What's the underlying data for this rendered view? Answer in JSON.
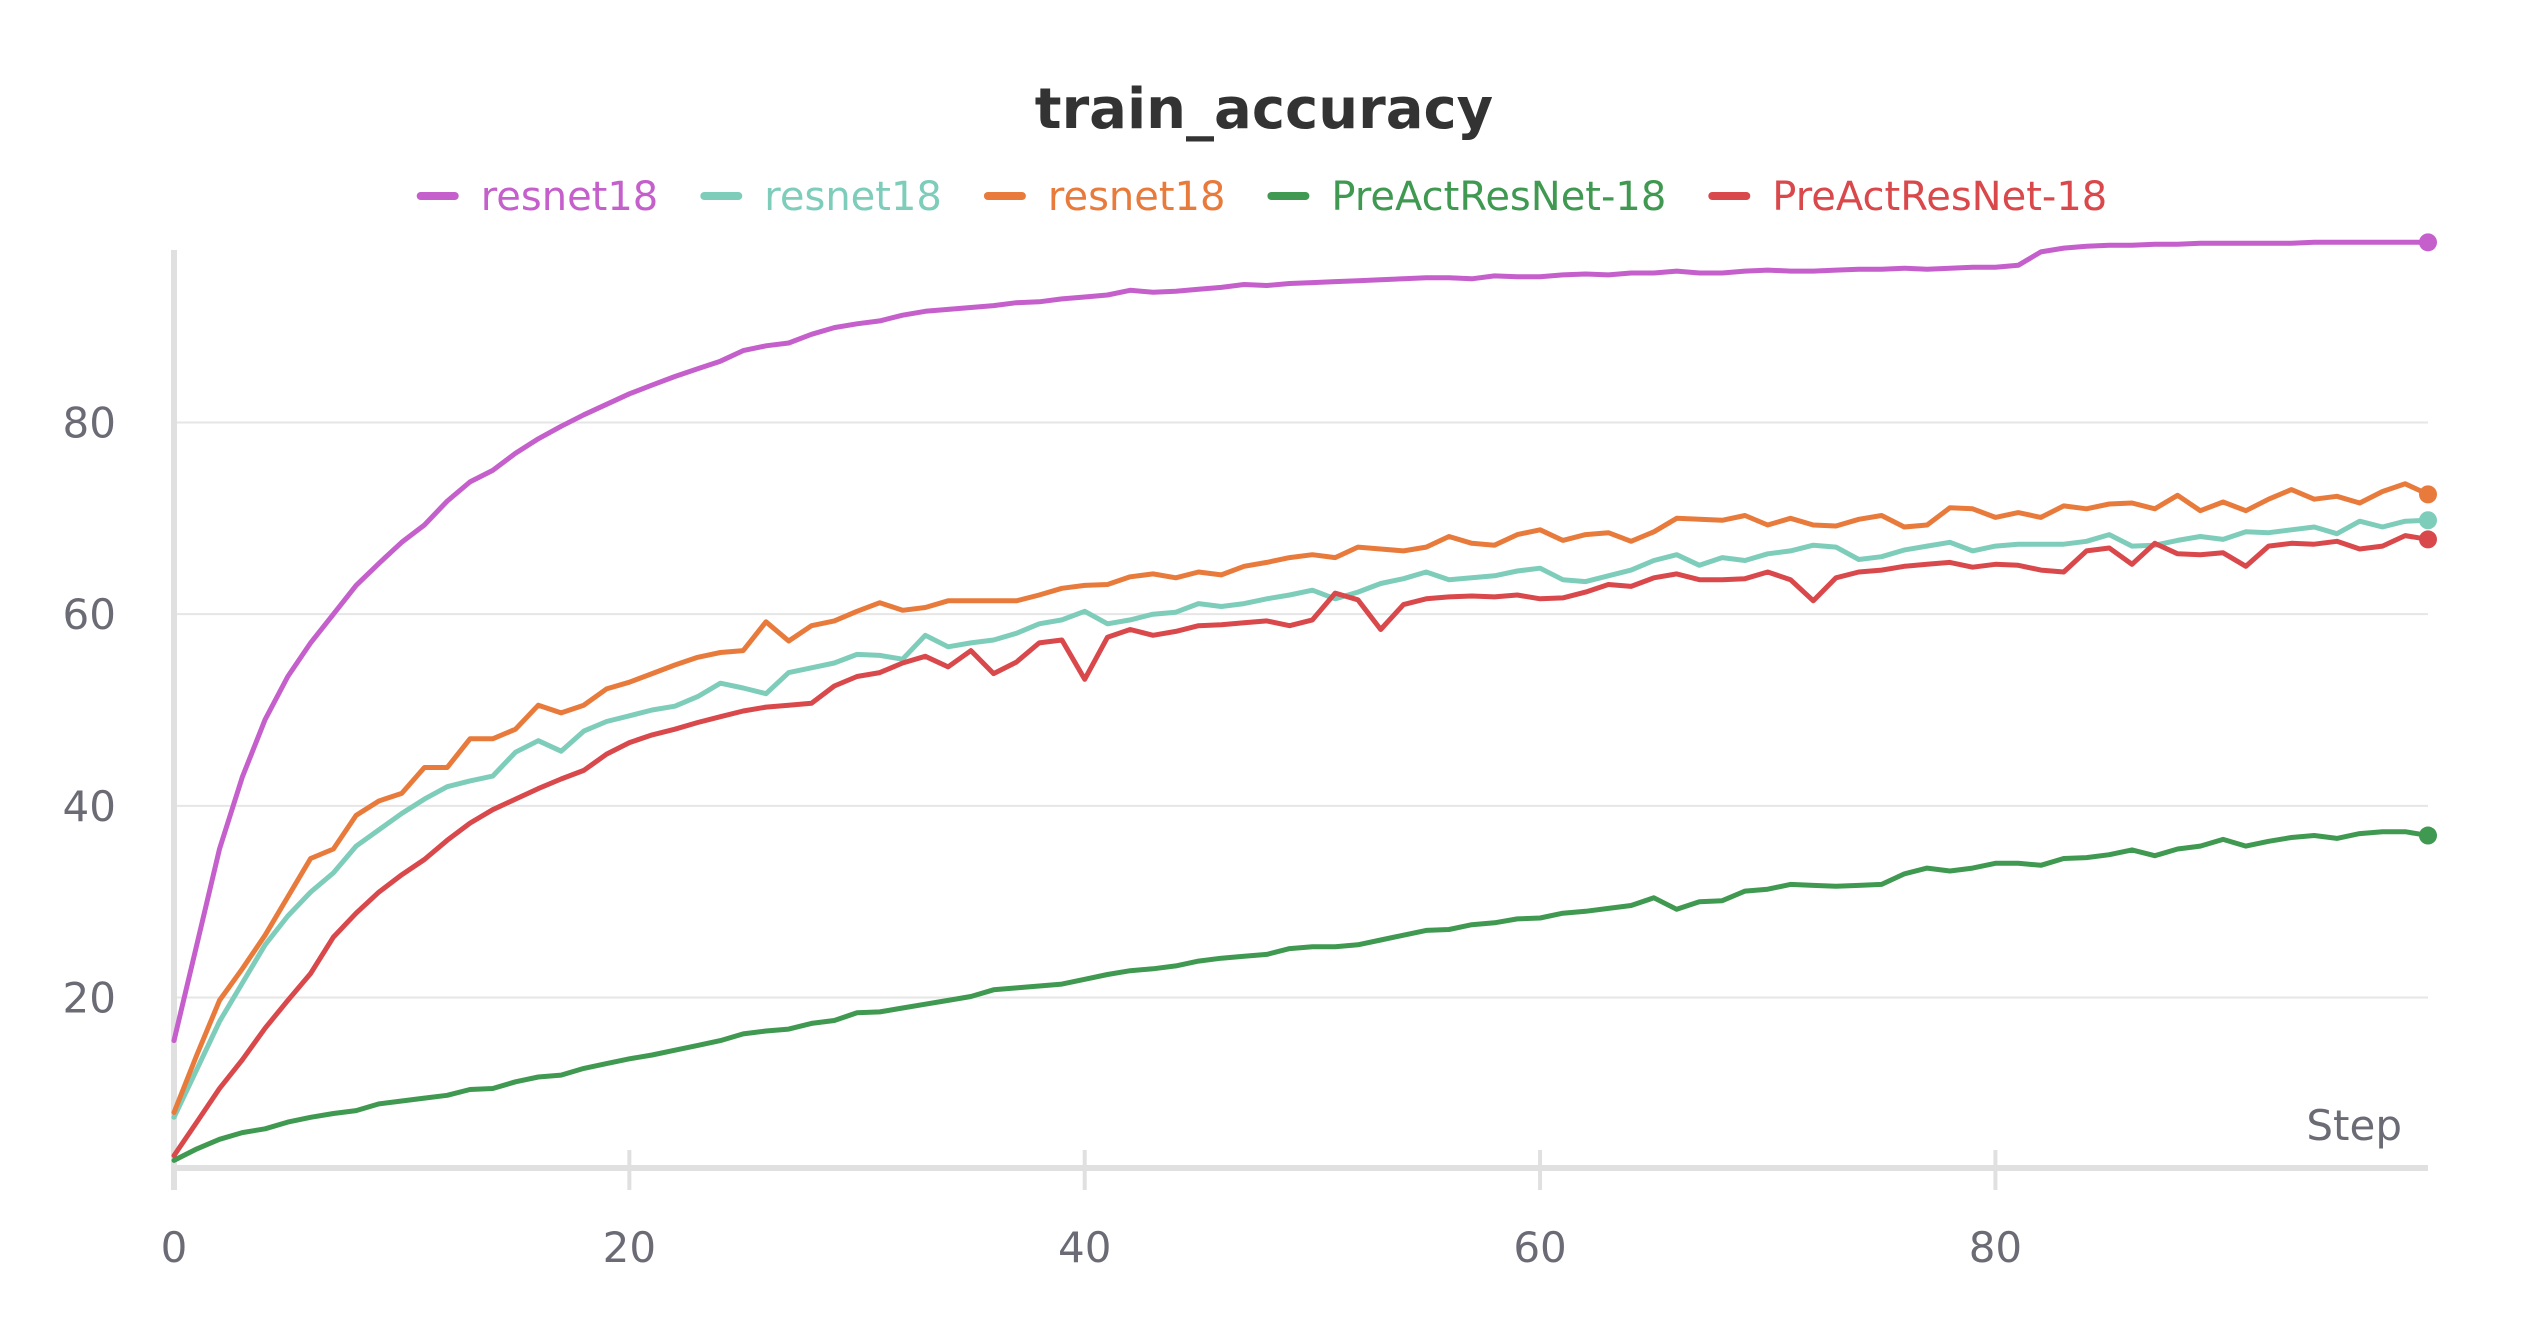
{
  "chart_data": {
    "type": "line",
    "title": "train_accuracy",
    "xlabel": "Step",
    "ylabel": "",
    "xlim": [
      0,
      99
    ],
    "ylim": [
      2,
      98
    ],
    "x_ticks": [
      0,
      20,
      40,
      60,
      80
    ],
    "y_ticks": [
      20,
      40,
      60,
      80
    ],
    "grid": true,
    "legend_position": "top-center",
    "series": [
      {
        "name": "resnet18",
        "color": "#c45fcb",
        "values": [
          15.5,
          25.5,
          35.5,
          43.0,
          49.0,
          53.5,
          57.0,
          60.0,
          63.0,
          65.3,
          67.5,
          69.3,
          71.8,
          73.8,
          75.0,
          76.8,
          78.3,
          79.6,
          80.8,
          81.9,
          83.0,
          83.9,
          84.8,
          85.6,
          86.4,
          87.5,
          88.0,
          88.3,
          89.2,
          89.9,
          90.3,
          90.6,
          91.2,
          91.6,
          91.8,
          92.0,
          92.2,
          92.5,
          92.6,
          92.9,
          93.1,
          93.3,
          93.8,
          93.6,
          93.7,
          93.9,
          94.1,
          94.4,
          94.3,
          94.5,
          94.6,
          94.7,
          94.8,
          94.9,
          95.0,
          95.1,
          95.1,
          95.0,
          95.3,
          95.2,
          95.2,
          95.4,
          95.5,
          95.4,
          95.6,
          95.6,
          95.8,
          95.6,
          95.6,
          95.8,
          95.9,
          95.8,
          95.8,
          95.9,
          96.0,
          96.0,
          96.1,
          96.0,
          96.1,
          96.2,
          96.2,
          96.4,
          97.8,
          98.2,
          98.4,
          98.5,
          98.5,
          98.6,
          98.6,
          98.7,
          98.7,
          98.7,
          98.7,
          98.7,
          98.8,
          98.8,
          98.8,
          98.8,
          98.8,
          98.8
        ]
      },
      {
        "name": "resnet18",
        "color": "#7ecdbb",
        "values": [
          7.5,
          12.5,
          17.5,
          21.5,
          25.5,
          28.5,
          31.0,
          33.0,
          35.8,
          37.5,
          39.2,
          40.7,
          42.0,
          42.6,
          43.1,
          45.6,
          46.8,
          45.7,
          47.8,
          48.8,
          49.4,
          50.0,
          50.4,
          51.4,
          52.8,
          52.3,
          51.7,
          53.9,
          54.4,
          54.9,
          55.8,
          55.7,
          55.3,
          57.8,
          56.6,
          57.0,
          57.3,
          58.0,
          59.0,
          59.4,
          60.3,
          59.0,
          59.4,
          60.0,
          60.2,
          61.1,
          60.8,
          61.1,
          61.6,
          62.0,
          62.5,
          61.6,
          62.3,
          63.2,
          63.7,
          64.4,
          63.6,
          63.8,
          64.0,
          64.5,
          64.8,
          63.6,
          63.4,
          64.0,
          64.6,
          65.6,
          66.2,
          65.1,
          65.9,
          65.6,
          66.3,
          66.6,
          67.2,
          67.0,
          65.7,
          66.0,
          66.7,
          67.1,
          67.5,
          66.6,
          67.1,
          67.3,
          67.3,
          67.3,
          67.6,
          68.3,
          67.1,
          67.2,
          67.7,
          68.1,
          67.8,
          68.6,
          68.5,
          68.8,
          69.1,
          68.4,
          69.7,
          69.1,
          69.7,
          69.8
        ]
      },
      {
        "name": "resnet18",
        "color": "#e87b3c",
        "values": [
          8.0,
          14.0,
          19.7,
          23.0,
          26.5,
          30.5,
          34.5,
          35.5,
          39.0,
          40.5,
          41.3,
          44.0,
          44.0,
          47.0,
          47.0,
          48.0,
          50.5,
          49.7,
          50.5,
          52.2,
          52.9,
          53.8,
          54.7,
          55.5,
          56.0,
          56.2,
          59.2,
          57.2,
          58.8,
          59.3,
          60.3,
          61.2,
          60.4,
          60.7,
          61.4,
          61.4,
          61.4,
          61.4,
          62.0,
          62.7,
          63.0,
          63.1,
          63.9,
          64.2,
          63.8,
          64.4,
          64.1,
          65.0,
          65.4,
          65.9,
          66.2,
          65.9,
          67.0,
          66.8,
          66.6,
          67.0,
          68.1,
          67.4,
          67.2,
          68.3,
          68.8,
          67.7,
          68.3,
          68.5,
          67.6,
          68.6,
          70.0,
          69.9,
          69.8,
          70.3,
          69.3,
          70.0,
          69.3,
          69.2,
          69.9,
          70.3,
          69.1,
          69.3,
          71.1,
          71.0,
          70.1,
          70.6,
          70.1,
          71.3,
          71.0,
          71.5,
          71.6,
          71.0,
          72.4,
          70.8,
          71.7,
          70.8,
          72.0,
          73.0,
          72.0,
          72.3,
          71.6,
          72.8,
          73.6,
          72.5
        ]
      },
      {
        "name": "PreActResNet-18",
        "color": "#3f9950",
        "values": [
          3.0,
          4.2,
          5.2,
          5.9,
          6.3,
          7.0,
          7.5,
          7.9,
          8.2,
          8.9,
          9.2,
          9.5,
          9.8,
          10.4,
          10.5,
          11.2,
          11.7,
          11.9,
          12.6,
          13.1,
          13.6,
          14.0,
          14.5,
          15.0,
          15.5,
          16.2,
          16.5,
          16.7,
          17.3,
          17.6,
          18.4,
          18.5,
          18.9,
          19.3,
          19.7,
          20.1,
          20.8,
          21.0,
          21.2,
          21.4,
          21.9,
          22.4,
          22.8,
          23.0,
          23.3,
          23.8,
          24.1,
          24.3,
          24.5,
          25.1,
          25.3,
          25.3,
          25.5,
          26.0,
          26.5,
          27.0,
          27.1,
          27.6,
          27.8,
          28.2,
          28.3,
          28.8,
          29.0,
          29.3,
          29.6,
          30.4,
          29.2,
          30.0,
          30.1,
          31.1,
          31.3,
          31.8,
          31.7,
          31.6,
          31.7,
          31.8,
          32.9,
          33.5,
          33.2,
          33.5,
          34.0,
          34.0,
          33.8,
          34.5,
          34.6,
          34.9,
          35.4,
          34.8,
          35.5,
          35.8,
          36.5,
          35.8,
          36.3,
          36.7,
          36.9,
          36.6,
          37.1,
          37.3,
          37.3,
          36.9
        ]
      },
      {
        "name": "PreActResNet-18",
        "color": "#d9484b",
        "values": [
          3.5,
          7.0,
          10.5,
          13.5,
          16.8,
          19.7,
          22.5,
          26.3,
          28.8,
          31.0,
          32.8,
          34.4,
          36.4,
          38.2,
          39.6,
          40.7,
          41.8,
          42.8,
          43.7,
          45.4,
          46.6,
          47.4,
          48.0,
          48.7,
          49.3,
          49.9,
          50.3,
          50.5,
          50.7,
          52.5,
          53.5,
          53.9,
          54.9,
          55.6,
          54.5,
          56.2,
          53.8,
          55.0,
          57.0,
          57.3,
          53.2,
          57.6,
          58.4,
          57.8,
          58.2,
          58.8,
          58.9,
          59.1,
          59.3,
          58.8,
          59.4,
          62.2,
          61.5,
          58.4,
          61.0,
          61.6,
          61.8,
          61.9,
          61.8,
          62.0,
          61.6,
          61.7,
          62.3,
          63.1,
          62.9,
          63.8,
          64.2,
          63.6,
          63.6,
          63.7,
          64.4,
          63.6,
          61.4,
          63.8,
          64.4,
          64.6,
          65.0,
          65.2,
          65.4,
          64.9,
          65.2,
          65.1,
          64.6,
          64.4,
          66.6,
          66.9,
          65.2,
          67.4,
          66.3,
          66.2,
          66.4,
          65.0,
          67.1,
          67.4,
          67.3,
          67.6,
          66.8,
          67.1,
          68.2,
          67.8
        ]
      }
    ]
  }
}
